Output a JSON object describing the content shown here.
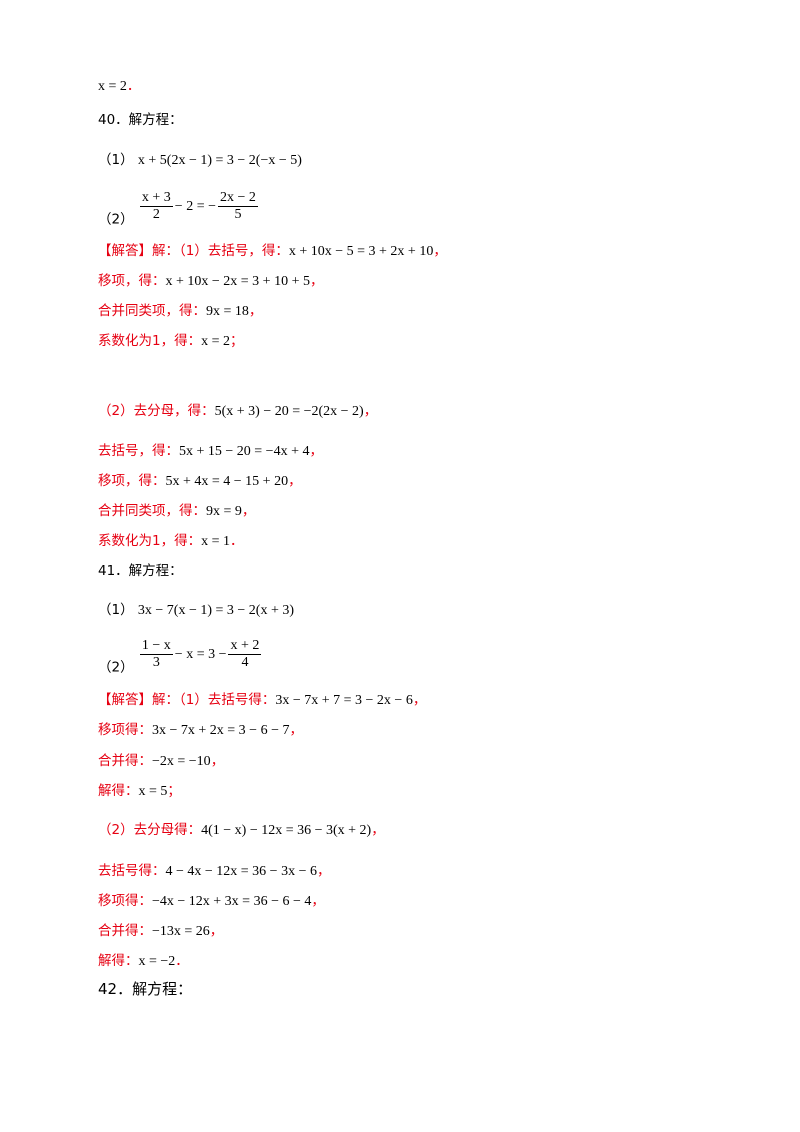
{
  "prev_tail": {
    "eq": "x = 2",
    "sep": "．"
  },
  "q40": {
    "title": "40．解方程：",
    "p1_label": "（1）",
    "p1_eq": "x + 5(2x − 1) = 3 − 2(−x − 5)",
    "p2_label": "（2）",
    "p2_left_num": "x + 3",
    "p2_left_den": "2",
    "p2_mid": "− 2 = −",
    "p2_right_num": "2x − 2",
    "p2_right_den": "5",
    "sol": [
      {
        "text": "【解答】解：（1）去括号，得：",
        "eq": "x + 10x − 5 = 3 + 2x + 10",
        "sep": "，"
      },
      {
        "text": "移项，得：",
        "eq": "x + 10x − 2x = 3 + 10 + 5",
        "sep": "，"
      },
      {
        "text": "合并同类项，得：",
        "eq": "9x = 18",
        "sep": "，"
      },
      {
        "text": "系数化为1，得：",
        "eq": "x = 2",
        "sep": "；"
      },
      {
        "text": "（2）去分母，得：",
        "eq": "5(x + 3) − 20 = −2(2x − 2)",
        "sep": "，"
      },
      {
        "text": "去括号，得：",
        "eq": "5x + 15 − 20 = −4x + 4",
        "sep": "，"
      },
      {
        "text": "移项，得：",
        "eq": "5x + 4x = 4 − 15 + 20",
        "sep": "，"
      },
      {
        "text": "合并同类项，得：",
        "eq": "9x = 9",
        "sep": "，"
      },
      {
        "text": "系数化为1，得：",
        "eq": "x = 1",
        "sep": "．"
      }
    ]
  },
  "q41": {
    "title": "41．解方程：",
    "p1_label": "（1）",
    "p1_eq": "3x − 7(x − 1) = 3 − 2(x + 3)",
    "p2_label": "（2）",
    "p2_left_num": "1 − x",
    "p2_left_den": "3",
    "p2_mid": "− x = 3 −",
    "p2_right_num": "x + 2",
    "p2_right_den": "4",
    "sol": [
      {
        "text": "【解答】解：（1）去括号得：",
        "eq": "3x − 7x + 7 = 3 − 2x − 6",
        "sep": "，"
      },
      {
        "text": "移项得：",
        "eq": "3x − 7x + 2x = 3 − 6 − 7",
        "sep": "，"
      },
      {
        "text": "合并得：",
        "eq": "−2x = −10",
        "sep": "，"
      },
      {
        "text": "解得：",
        "eq": "x = 5",
        "sep": "；"
      },
      {
        "text": "（2）去分母得：",
        "eq": "4(1 − x) − 12x = 36 − 3(x + 2)",
        "sep": "，"
      },
      {
        "text": "去括号得：",
        "eq": "4 − 4x − 12x = 36 − 3x − 6",
        "sep": "，"
      },
      {
        "text": "移项得：",
        "eq": "−4x − 12x + 3x = 36 − 6 − 4",
        "sep": "，"
      },
      {
        "text": "合并得：",
        "eq": "−13x = 26",
        "sep": "，"
      },
      {
        "text": "解得：",
        "eq": "x = −2",
        "sep": "．"
      }
    ]
  },
  "q42": {
    "title": "42．解方程："
  }
}
